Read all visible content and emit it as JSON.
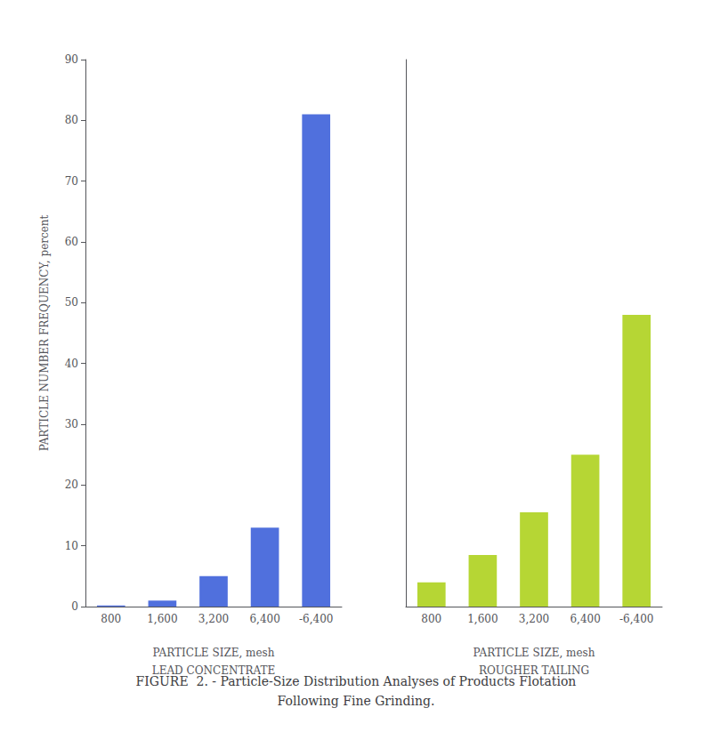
{
  "chart_data": [
    {
      "type": "bar",
      "categories": [
        "800",
        "1,600",
        "3,200",
        "6,400",
        "-6,400"
      ],
      "values": [
        0.2,
        1.0,
        5.0,
        13.0,
        81.0
      ],
      "xlabel": [
        "PARTICLE SIZE, mesh",
        "LEAD CONCENTRATE"
      ],
      "ylabel": "PARTICLE NUMBER FREQUENCY, percent",
      "ylim": [
        0,
        90
      ],
      "yticks": [
        0,
        10,
        20,
        30,
        40,
        50,
        60,
        70,
        80,
        90
      ],
      "grid": false
    },
    {
      "type": "bar",
      "categories": [
        "800",
        "1,600",
        "3,200",
        "6,400",
        "-6,400"
      ],
      "values": [
        4.0,
        8.5,
        15.5,
        25.0,
        48.0
      ],
      "xlabel": [
        "PARTICLE SIZE, mesh",
        "ROUGHER TAILING"
      ],
      "ylim": [
        0,
        90
      ],
      "yticks": [
        0,
        10,
        20,
        30,
        40,
        50,
        60,
        70,
        80,
        90
      ],
      "grid": false,
      "tick_labels": "x"
    }
  ],
  "caption": [
    "FIGURE  2. - Particle-Size Distribution Analyses of Products Flotation",
    "Following Fine Grinding."
  ]
}
